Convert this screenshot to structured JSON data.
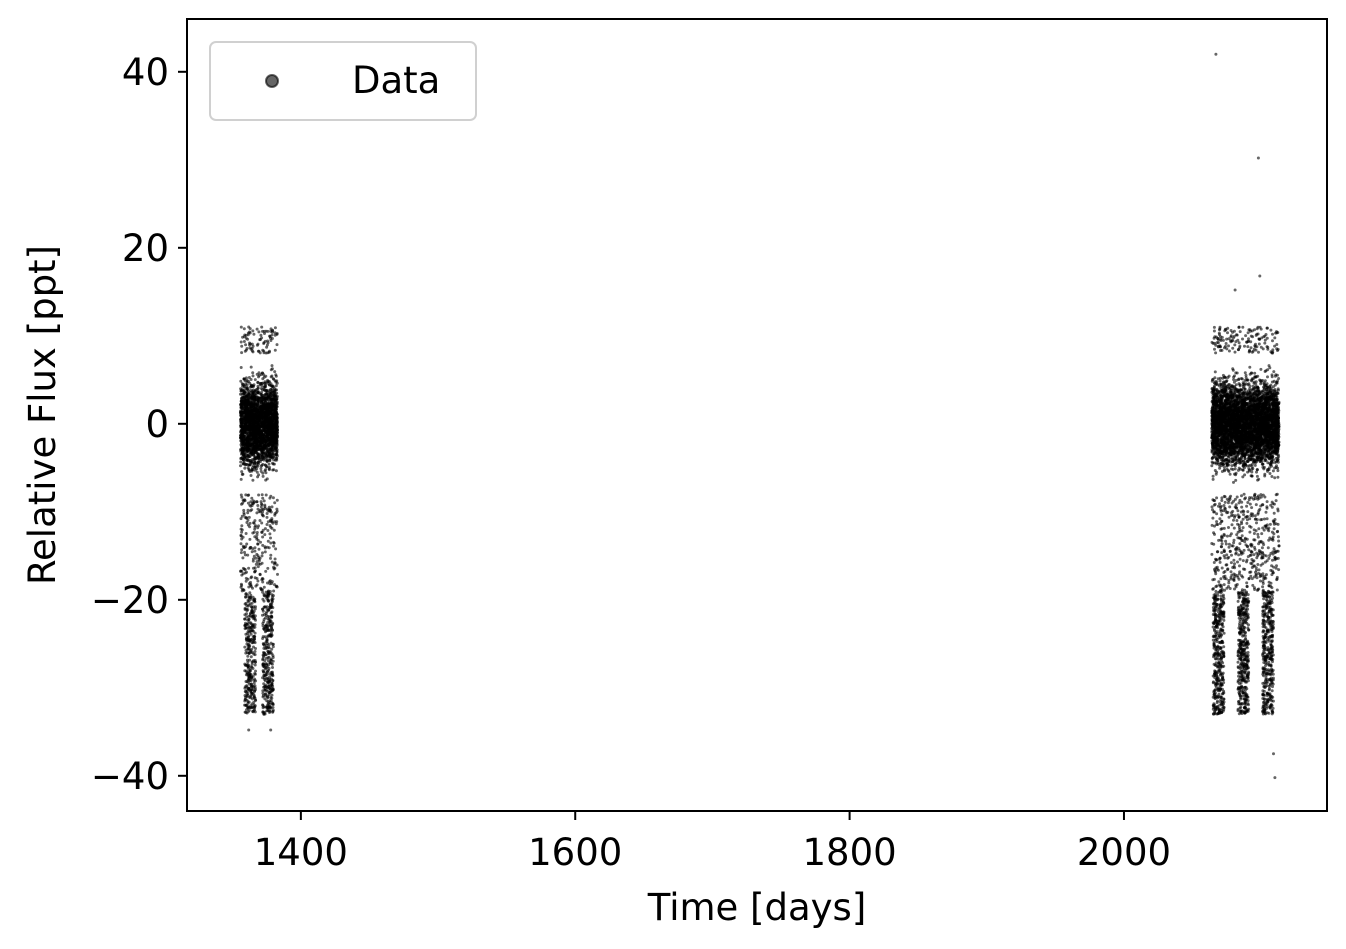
{
  "chart_data": {
    "type": "scatter",
    "xlabel": "Time [days]",
    "ylabel": "Relative Flux [ppt]",
    "xlim": [
      1317,
      2148
    ],
    "ylim": [
      -44,
      46
    ],
    "xticks": [
      1400,
      1600,
      1800,
      2000
    ],
    "yticks": [
      -40,
      -20,
      0,
      20,
      40
    ],
    "xtick_labels": [
      "1400",
      "1600",
      "1800",
      "2000"
    ],
    "ytick_labels": [
      "−40",
      "−20",
      "0",
      "20",
      "40"
    ],
    "grid": false,
    "legend": {
      "placement": "top-left",
      "entries": [
        "Data"
      ]
    },
    "series": [
      {
        "name": "Data",
        "color": "#000000",
        "opacity": 0.6,
        "segments": [
          {
            "x_range": [
              1356,
              1383
            ],
            "core_y": [
              -8,
              8
            ],
            "dip_y": [
              -33,
              -19
            ],
            "dip_centers": [
              1363,
              1376
            ]
          },
          {
            "x_range": [
              2064,
              2113
            ],
            "core_y": [
              -8,
              8
            ],
            "dip_y": [
              -33,
              -19
            ],
            "dip_centers": [
              2069,
              2087,
              2105
            ]
          }
        ],
        "highlighted_points": [
          {
            "x": 2067,
            "y": 42.0
          },
          {
            "x": 2098,
            "y": 30.2
          },
          {
            "x": 2099,
            "y": 16.8
          },
          {
            "x": 2081,
            "y": 15.2
          },
          {
            "x": 2110,
            "y": -40.2
          },
          {
            "x": 2109,
            "y": -37.5
          },
          {
            "x": 1362,
            "y": -34.8
          },
          {
            "x": 1378,
            "y": -34.8
          },
          {
            "x": 1362,
            "y": 11.0
          },
          {
            "x": 1378,
            "y": 10.5
          }
        ]
      }
    ]
  }
}
